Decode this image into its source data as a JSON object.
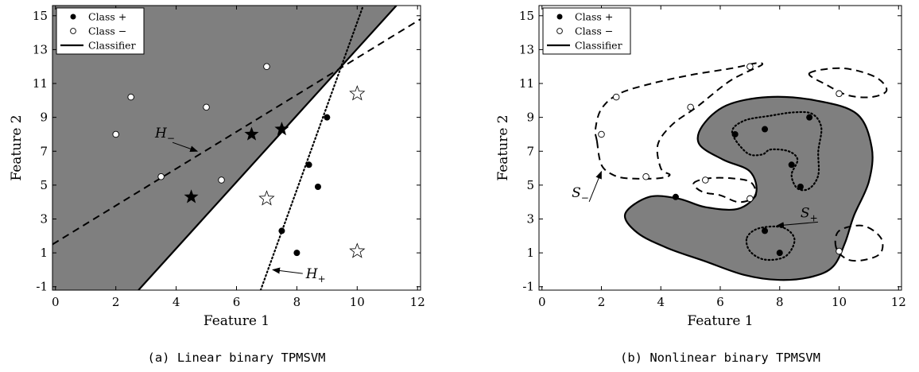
{
  "chart_data": [
    {
      "type": "scatter",
      "title": "",
      "caption": "(a) Linear binary TPMSVM",
      "xlabel": "Feature 1",
      "ylabel": "Feature 2",
      "xlim": [
        -0.1,
        12.1
      ],
      "ylim": [
        -1.2,
        15.6
      ],
      "xticks": [
        "0",
        "2",
        "4",
        "6",
        "8",
        "10",
        "12"
      ],
      "yticks": [
        "-1",
        "1",
        "3",
        "5",
        "7",
        "9",
        "11",
        "13",
        "15"
      ],
      "grid": false,
      "legend_position": "top-left",
      "legend": [
        "Class +",
        "Class −",
        "Classifier"
      ],
      "series": [
        {
          "name": "Class +",
          "marker": "filled-circle",
          "points": [
            [
              9,
              9
            ],
            [
              8.4,
              6.2
            ],
            [
              8.7,
              4.9
            ],
            [
              7.5,
              2.3
            ],
            [
              8,
              1
            ]
          ]
        },
        {
          "name": "Class −",
          "marker": "open-circle",
          "points": [
            [
              2,
              8
            ],
            [
              2.5,
              10.2
            ],
            [
              3.5,
              5.5
            ],
            [
              5,
              9.6
            ],
            [
              5.5,
              5.3
            ],
            [
              7,
              12
            ]
          ]
        },
        {
          "name": "",
          "marker": "filled-star",
          "points": [
            [
              4.5,
              4.3
            ],
            [
              6.5,
              8
            ],
            [
              7.5,
              8.3
            ]
          ]
        },
        {
          "name": "",
          "marker": "open-star",
          "points": [
            [
              10,
              10.4
            ],
            [
              7,
              4.2
            ],
            [
              10,
              1.1
            ]
          ]
        }
      ],
      "lines": [
        {
          "name": "Classifier",
          "style": "solid",
          "from": [
            2.75,
            -1.2
          ],
          "to": [
            11.3,
            15.6
          ]
        },
        {
          "name": "H−",
          "style": "dashed",
          "from": [
            -0.1,
            1.5
          ],
          "to": [
            12.1,
            14.8
          ]
        },
        {
          "name": "H+",
          "style": "dotted",
          "from": [
            6.8,
            -1.2
          ],
          "to": [
            10.2,
            15.6
          ]
        }
      ],
      "annotations": [
        {
          "base": "H",
          "sub": "−",
          "text_at": [
            3.3,
            7.8
          ],
          "arrow_to": [
            4.7,
            7.0
          ]
        },
        {
          "base": "H",
          "sub": "+",
          "text_at": [
            8.3,
            -0.5
          ],
          "arrow_to": [
            7.2,
            0.0
          ]
        }
      ]
    },
    {
      "type": "scatter",
      "title": "",
      "caption": "(b) Nonlinear binary TPMSVM",
      "xlabel": "Feature 1",
      "ylabel": "Feature 2",
      "xlim": [
        -0.1,
        12.1
      ],
      "ylim": [
        -1.2,
        15.6
      ],
      "xticks": [
        "0",
        "2",
        "4",
        "6",
        "8",
        "10",
        "12"
      ],
      "yticks": [
        "-1",
        "1",
        "3",
        "5",
        "7",
        "9",
        "11",
        "13",
        "15"
      ],
      "grid": false,
      "legend_position": "top-left",
      "legend": [
        "Class +",
        "Class −",
        "Classifier"
      ],
      "series": [
        {
          "name": "Class +",
          "marker": "filled-circle",
          "points": [
            [
              4.5,
              4.3
            ],
            [
              6.5,
              8
            ],
            [
              7.5,
              8.3
            ],
            [
              9,
              9
            ],
            [
              8.4,
              6.2
            ],
            [
              8.7,
              4.9
            ],
            [
              7.5,
              2.3
            ],
            [
              8,
              1
            ]
          ]
        },
        {
          "name": "Class −",
          "marker": "open-circle",
          "points": [
            [
              2,
              8
            ],
            [
              2.5,
              10.2
            ],
            [
              3.5,
              5.5
            ],
            [
              5,
              9.6
            ],
            [
              5.5,
              5.3
            ],
            [
              7,
              12
            ],
            [
              7,
              4.2
            ],
            [
              10,
              10.4
            ],
            [
              10,
              1.1
            ]
          ]
        }
      ],
      "curves": [
        {
          "name": "Classifier",
          "style": "solid",
          "closed": true,
          "filled": true,
          "points": [
            [
              5.4,
              8.5
            ],
            [
              6.2,
              9.7
            ],
            [
              7.6,
              10.2
            ],
            [
              9.2,
              10
            ],
            [
              10.6,
              9.2
            ],
            [
              11.1,
              7.2
            ],
            [
              11,
              5.2
            ],
            [
              10.5,
              3.2
            ],
            [
              10.2,
              1.6
            ],
            [
              9.8,
              0.2
            ],
            [
              9.1,
              -0.4
            ],
            [
              8,
              -0.6
            ],
            [
              6.8,
              -0.3
            ],
            [
              5.5,
              0.5
            ],
            [
              4.2,
              1.3
            ],
            [
              3.2,
              2.2
            ],
            [
              2.8,
              3.3
            ],
            [
              3.6,
              4.3
            ],
            [
              4.6,
              4.2
            ],
            [
              5.5,
              3.7
            ],
            [
              6.6,
              3.6
            ],
            [
              7.2,
              4.5
            ],
            [
              7,
              5.8
            ],
            [
              6.1,
              6.5
            ],
            [
              5.3,
              7.4
            ]
          ]
        },
        {
          "name": "S+",
          "style": "dotted",
          "closed": true,
          "points": [
            [
              6.4,
              8.1
            ],
            [
              6.8,
              8.8
            ],
            [
              7.7,
              9.1
            ],
            [
              8.5,
              9.3
            ],
            [
              9.1,
              9.2
            ],
            [
              9.4,
              8.4
            ],
            [
              9.3,
              7.0
            ],
            [
              9.3,
              5.6
            ],
            [
              9.0,
              4.8
            ],
            [
              8.6,
              4.8
            ],
            [
              8.4,
              5.6
            ],
            [
              8.6,
              6.5
            ],
            [
              8.3,
              7.0
            ],
            [
              7.7,
              7.1
            ],
            [
              7.4,
              6.8
            ],
            [
              6.9,
              6.9
            ]
          ]
        },
        {
          "name": "S+",
          "style": "dotted",
          "closed": true,
          "points": [
            [
              6.9,
              1.9
            ],
            [
              7.3,
              2.45
            ],
            [
              8.1,
              2.5
            ],
            [
              8.5,
              1.8
            ],
            [
              8.2,
              0.8
            ],
            [
              7.5,
              0.6
            ],
            [
              7.0,
              1.1
            ]
          ]
        },
        {
          "name": "S−",
          "style": "dashed",
          "closed": true,
          "points": [
            [
              1.85,
              7.6
            ],
            [
              1.8,
              8.3
            ],
            [
              2.0,
              9.5
            ],
            [
              2.6,
              10.4
            ],
            [
              3.7,
              11.0
            ],
            [
              5.0,
              11.5
            ],
            [
              6.4,
              11.9
            ],
            [
              7.2,
              12.2
            ],
            [
              7.4,
              12.1
            ],
            [
              6.8,
              11.6
            ],
            [
              6.2,
              11.0
            ],
            [
              5.2,
              9.6
            ],
            [
              4.4,
              8.6
            ],
            [
              3.9,
              7.4
            ],
            [
              4.0,
              6.0
            ],
            [
              4.3,
              5.6
            ],
            [
              3.9,
              5.4
            ],
            [
              2.9,
              5.4
            ],
            [
              2.4,
              5.6
            ],
            [
              2.0,
              6.2
            ]
          ]
        },
        {
          "name": "S−",
          "style": "dashed",
          "closed": true,
          "points": [
            [
              5.1,
              5.1
            ],
            [
              5.6,
              5.4
            ],
            [
              6.4,
              5.4
            ],
            [
              7.0,
              5.2
            ],
            [
              7.2,
              4.6
            ],
            [
              7.1,
              4.2
            ],
            [
              6.6,
              4.0
            ],
            [
              6.0,
              4.4
            ],
            [
              5.4,
              4.6
            ]
          ]
        },
        {
          "name": "S−",
          "style": "dashed",
          "closed": true,
          "points": [
            [
              9.0,
              11.6
            ],
            [
              10.1,
              11.9
            ],
            [
              11.2,
              11.4
            ],
            [
              11.6,
              10.6
            ],
            [
              11.1,
              10.2
            ],
            [
              10.3,
              10.3
            ],
            [
              9.6,
              10.9
            ]
          ]
        },
        {
          "name": "S−",
          "style": "dashed",
          "closed": true,
          "points": [
            [
              9.9,
              1.3
            ],
            [
              10.0,
              2.3
            ],
            [
              10.8,
              2.6
            ],
            [
              11.4,
              1.9
            ],
            [
              11.4,
              1.0
            ],
            [
              10.9,
              0.6
            ],
            [
              10.3,
              0.6
            ]
          ]
        }
      ],
      "annotations": [
        {
          "base": "S",
          "sub": "−",
          "text_at": [
            1.0,
            4.3
          ],
          "arrow_to": [
            2.0,
            5.8
          ]
        },
        {
          "base": "S",
          "sub": "+",
          "text_at": [
            8.7,
            3.1
          ],
          "arrow_to": [
            7.9,
            2.6
          ]
        }
      ]
    }
  ]
}
